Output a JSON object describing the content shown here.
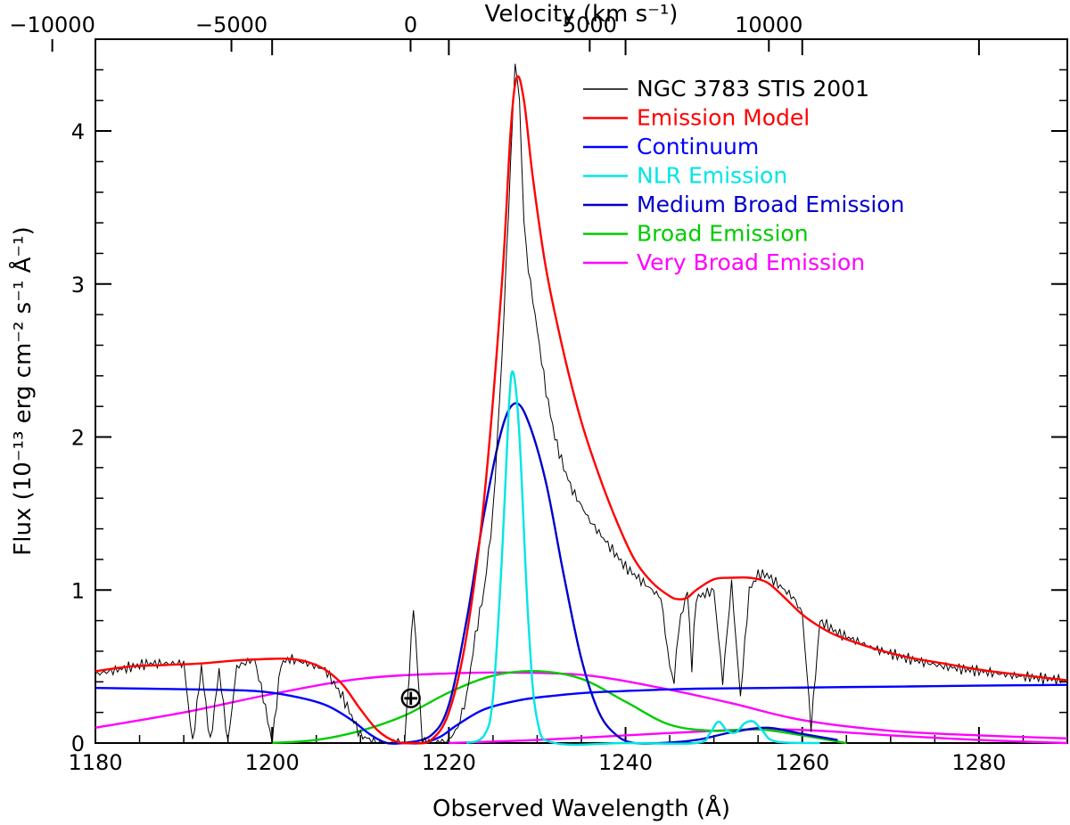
{
  "chart_data": {
    "type": "line",
    "xlabel": "Observed Wavelength (Å)",
    "ylabel": "Flux (10⁻¹³ erg cm⁻² s⁻¹ Å⁻¹)",
    "x2label": "Velocity (km s⁻¹)",
    "xlim": [
      1180,
      1290
    ],
    "ylim": [
      0,
      4.6
    ],
    "xticks": [
      1180,
      1200,
      1220,
      1240,
      1260,
      1280
    ],
    "yticks": [
      0,
      1,
      2,
      3,
      4
    ],
    "x2ticks": [
      -10000,
      -5000,
      0,
      5000,
      10000
    ],
    "x2_reference_wavelength": 1215.67,
    "legend_position": "top-right",
    "annotation": "⊕",
    "annotation_x": 1215.7,
    "annotation_y": 0.3,
    "series": [
      {
        "name": "NGC 3783 STIS 2001",
        "color": "#000000",
        "style": "noisy",
        "x": [
          1180,
          1186,
          1190,
          1191,
          1192,
          1193,
          1194,
          1195,
          1196,
          1198,
          1199,
          1200,
          1201,
          1202,
          1204,
          1206,
          1208,
          1210,
          1212,
          1214,
          1215,
          1216,
          1217,
          1219,
          1220,
          1221,
          1222,
          1223,
          1224,
          1225,
          1226,
          1227,
          1227.5,
          1228,
          1228.5,
          1229,
          1230,
          1231,
          1232,
          1233,
          1234,
          1236,
          1238,
          1240,
          1242,
          1244,
          1245,
          1245.5,
          1246,
          1247,
          1247.5,
          1248,
          1250,
          1251,
          1252,
          1253,
          1254,
          1255,
          1256,
          1257,
          1258,
          1259,
          1260,
          1261,
          1262,
          1264,
          1268,
          1272,
          1276,
          1280,
          1284,
          1290
        ],
        "y": [
          0.45,
          0.52,
          0.52,
          0.0,
          0.5,
          0.0,
          0.48,
          0.0,
          0.5,
          0.55,
          0.3,
          0.0,
          0.52,
          0.55,
          0.52,
          0.48,
          0.3,
          0.05,
          0.0,
          0.0,
          0.0,
          0.9,
          0.0,
          0.0,
          0.02,
          0.1,
          0.3,
          0.7,
          1.0,
          1.5,
          2.5,
          3.8,
          4.45,
          4.2,
          3.4,
          3.1,
          2.7,
          2.3,
          2.0,
          1.8,
          1.65,
          1.45,
          1.3,
          1.15,
          1.05,
          0.95,
          0.5,
          0.4,
          0.75,
          1.0,
          0.5,
          0.95,
          1.0,
          0.4,
          1.05,
          0.3,
          1.0,
          1.1,
          1.1,
          1.05,
          1.0,
          0.95,
          0.85,
          0.1,
          0.8,
          0.72,
          0.62,
          0.55,
          0.5,
          0.47,
          0.44,
          0.41
        ]
      },
      {
        "name": "Emission Model",
        "color": "#ff0000",
        "style": "smooth",
        "x": [
          1180,
          1184,
          1188,
          1192,
          1196,
          1200,
          1202,
          1204,
          1206,
          1208,
          1210,
          1212,
          1214,
          1216,
          1218,
          1220,
          1222,
          1224,
          1226,
          1227,
          1227.7,
          1228.5,
          1229.5,
          1231,
          1233,
          1235,
          1237,
          1239,
          1241,
          1243,
          1245,
          1246,
          1247,
          1248,
          1250,
          1252,
          1254,
          1256,
          1258,
          1260,
          1262,
          1264,
          1268,
          1272,
          1276,
          1280,
          1284,
          1290
        ],
        "y": [
          0.47,
          0.5,
          0.51,
          0.52,
          0.54,
          0.55,
          0.55,
          0.53,
          0.48,
          0.38,
          0.22,
          0.08,
          0.01,
          0.0,
          0.02,
          0.2,
          0.7,
          1.6,
          3.0,
          4.0,
          4.35,
          4.2,
          3.7,
          3.1,
          2.55,
          2.1,
          1.75,
          1.45,
          1.2,
          1.05,
          0.96,
          0.94,
          0.95,
          1.0,
          1.07,
          1.08,
          1.08,
          1.05,
          0.95,
          0.84,
          0.76,
          0.7,
          0.62,
          0.56,
          0.52,
          0.48,
          0.45,
          0.41
        ]
      },
      {
        "name": "Continuum",
        "color": "#0000ff",
        "style": "smooth",
        "x": [
          1180,
          1186,
          1192,
          1198,
          1202,
          1206,
          1209,
          1211,
          1213,
          1215,
          1217,
          1219,
          1221,
          1224,
          1228,
          1232,
          1236,
          1240,
          1248,
          1256,
          1264,
          1272,
          1280,
          1290
        ],
        "y": [
          0.36,
          0.355,
          0.35,
          0.34,
          0.31,
          0.25,
          0.15,
          0.06,
          0.0,
          0.0,
          0.0,
          0.04,
          0.12,
          0.22,
          0.28,
          0.31,
          0.33,
          0.34,
          0.355,
          0.36,
          0.365,
          0.37,
          0.375,
          0.38
        ]
      },
      {
        "name": "NLR Emission",
        "color": "#00e5e5",
        "style": "smooth",
        "x": [
          1222,
          1224,
          1225,
          1226,
          1226.8,
          1227.3,
          1228,
          1229,
          1230,
          1232,
          1240,
          1248,
          1249.5,
          1250.5,
          1251.5,
          1252.5,
          1253.5,
          1254.5,
          1255.5,
          1257,
          1262
        ],
        "y": [
          0.0,
          0.05,
          0.3,
          1.2,
          2.2,
          2.42,
          2.0,
          0.8,
          0.15,
          0.0,
          0.0,
          0.0,
          0.06,
          0.14,
          0.08,
          0.07,
          0.13,
          0.14,
          0.08,
          0.01,
          0.0
        ]
      },
      {
        "name": "Medium Broad Emission",
        "color": "#0000cc",
        "style": "smooth",
        "x": [
          1215,
          1218,
          1220,
          1222,
          1224,
          1226,
          1227.5,
          1229,
          1231,
          1233,
          1235,
          1237,
          1239,
          1241,
          1244,
          1248,
          1252,
          1256,
          1260,
          1264
        ],
        "y": [
          0.0,
          0.05,
          0.25,
          0.8,
          1.5,
          2.05,
          2.22,
          2.1,
          1.7,
          1.1,
          0.55,
          0.2,
          0.05,
          0.0,
          0.0,
          0.02,
          0.07,
          0.1,
          0.06,
          0.02
        ]
      },
      {
        "name": "Broad Emission",
        "color": "#00cc00",
        "style": "smooth",
        "x": [
          1200,
          1205,
          1210,
          1215,
          1220,
          1225,
          1230,
          1235,
          1240,
          1245,
          1250,
          1255,
          1260,
          1265
        ],
        "y": [
          0.0,
          0.02,
          0.08,
          0.18,
          0.33,
          0.44,
          0.47,
          0.42,
          0.27,
          0.12,
          0.08,
          0.09,
          0.05,
          0.0
        ]
      },
      {
        "name": "Very Broad Emission",
        "color": "#ff00ff",
        "style": "smooth",
        "x": [
          1180,
          1190,
          1200,
          1210,
          1220,
          1228,
          1236,
          1244,
          1252,
          1260,
          1270,
          1280,
          1290
        ],
        "y": [
          0.1,
          0.2,
          0.32,
          0.42,
          0.455,
          0.46,
          0.44,
          0.36,
          0.26,
          0.15,
          0.08,
          0.05,
          0.03
        ]
      },
      {
        "name": "",
        "color": "#ff00ff",
        "style": "smooth",
        "x": [
          1220,
          1230,
          1240,
          1250,
          1256,
          1262,
          1270,
          1280,
          1290
        ],
        "y": [
          0.0,
          0.02,
          0.05,
          0.08,
          0.09,
          0.08,
          0.05,
          0.02,
          0.0
        ]
      }
    ]
  }
}
